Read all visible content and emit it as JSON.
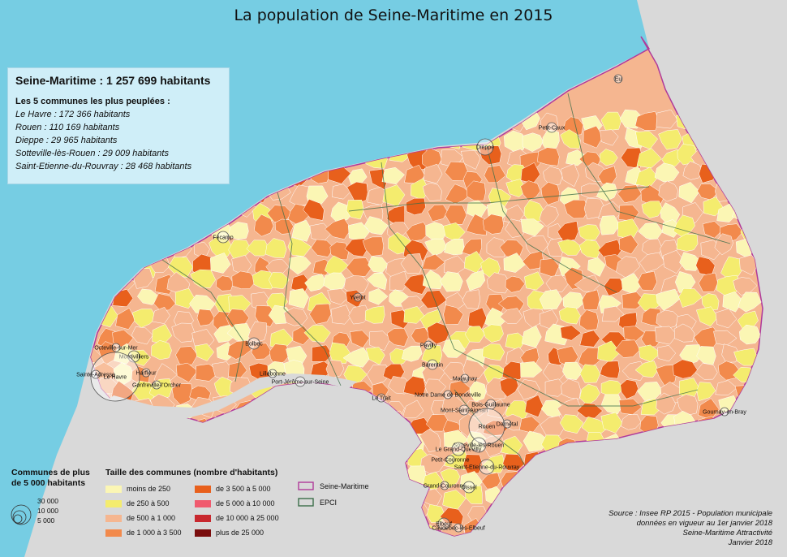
{
  "title": "La population de Seine-Maritime en 2015",
  "summary": {
    "total": "Seine-Maritime : 1 257 699 habitants",
    "subtitle": "Les 5 communes les plus peuplées :",
    "top5": [
      "Le Havre : 172 366 habitants",
      "Rouen : 110 169 habitants",
      "Dieppe : 29 965 habitants",
      "Sotteville-lès-Rouen : 29 009 habitants",
      "Saint-Etienne-du-Rouvray : 28 468 habitants"
    ]
  },
  "legend_circles": {
    "title_line1": "Communes de plus",
    "title_line2": "de 5 000 habitants",
    "values": [
      "30 000",
      "10 000",
      "5 000"
    ]
  },
  "legend_classes": {
    "title": "Taille des communes (nombre d'habitants)",
    "items": [
      {
        "label": "moins de 250",
        "color": "#fbf6b4"
      },
      {
        "label": "de 250 à 500",
        "color": "#f4ec6e"
      },
      {
        "label": "de 500 à 1 000",
        "color": "#f5b690"
      },
      {
        "label": "de 1 000 à 3 500",
        "color": "#f28a4c"
      },
      {
        "label": "de 3 500 à 5 000",
        "color": "#e8601c"
      },
      {
        "label": "de 5 000 à 10 000",
        "color": "#f05a6e"
      },
      {
        "label": "de 10 000 à 25 000",
        "color": "#c8282e"
      },
      {
        "label": "plus de 25 000",
        "color": "#7a0d0d"
      }
    ]
  },
  "legend_boundaries": [
    {
      "label": "Seine-Maritime",
      "color": "#b03a9a"
    },
    {
      "label": "EPCI",
      "color": "#3c6e4a"
    }
  ],
  "source": {
    "line1": "Source : Insee RP 2015 - Population municipale",
    "line2": "données en vigueur au 1er janvier 2018",
    "line3": "Seine-Maritime Attractivité",
    "line4": "Janvier 2018"
  },
  "cities": [
    "Eu",
    "Petit-Caux",
    "Dieppe",
    "Fécamp",
    "Yvetot",
    "Bolbec",
    "Octeville-sur-Mer",
    "Montivilliers",
    "Le Havre",
    "Sainte-Adresse",
    "Harfleur",
    "Gonfreville-l'Orcher",
    "Lillebonne",
    "Port-Jérôme-sur-Seine",
    "Le Trait",
    "Pavilly",
    "Barentin",
    "Malaunay",
    "Notre Dame de Bondeville",
    "Mont-Saint-Aignan",
    "Bois-Guillaume",
    "Rouen",
    "Darnétal",
    "Sotteville-lès-Rouen",
    "Le Grand-Quevilly",
    "Petit-Couronne",
    "Saint-Etienne-du-Rouvray",
    "Grand-Couronne",
    "Oissel",
    "Elbeuf",
    "Caudebec-lès-Elbeuf",
    "Gournay-en-Bray"
  ]
}
